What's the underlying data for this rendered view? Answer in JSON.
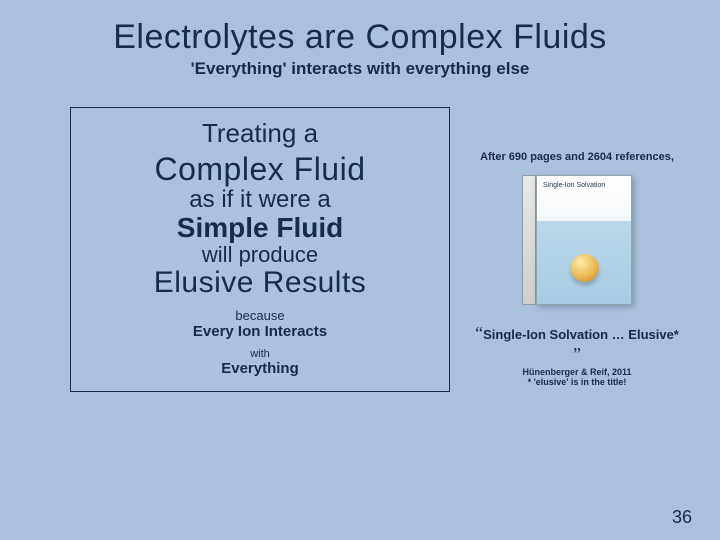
{
  "title": "Electrolytes are Complex Fluids",
  "subtitle": "'Everything' interacts with everything else",
  "box": {
    "line1": "Treating a",
    "line2": "Complex Fluid",
    "line3": "as if it were a",
    "line4": "Simple Fluid",
    "line5": "will produce",
    "line6": "Elusive Results",
    "because": "because",
    "every": "Every Ion Interacts",
    "with": "with",
    "everything": "Everything"
  },
  "right": {
    "after": "After 690 pages and 2604 references,",
    "book_headline": "Single-Ion Solvation",
    "quote_text": "Single-Ion Solvation … Elusive*",
    "attribution": "Hünenberger & Reif, 2011",
    "note": "* 'elusive' is in the title!"
  },
  "page_number": "36",
  "colors": {
    "background": "#a9c1dd",
    "text": "#1a2a4a"
  }
}
